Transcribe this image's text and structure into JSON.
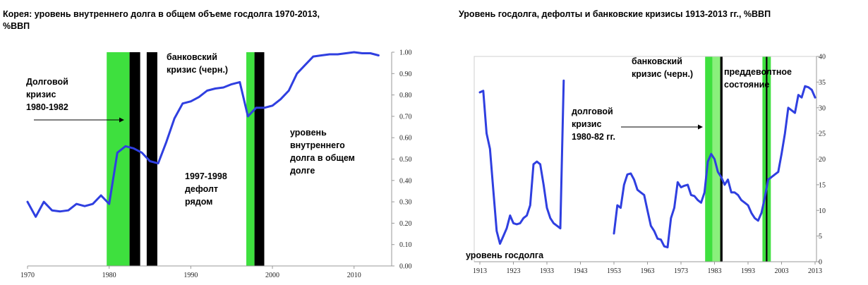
{
  "chart_data": [
    {
      "type": "line",
      "title": "Корея: уровень внутреннего долга в общем объеме госдолга 1970-2013,",
      "title_line2": "%ВВП",
      "y_axis_side": "right",
      "xlim": [
        1970,
        2014
      ],
      "ylim": [
        0,
        1.0
      ],
      "x_ticks": [
        "1970",
        "1980",
        "1990",
        "2000",
        "2010"
      ],
      "y_ticks": [
        "0.00",
        "0.10",
        "0.20",
        "0.30",
        "0.40",
        "0.50",
        "0.60",
        "0.70",
        "0.80",
        "0.90",
        "1.00"
      ],
      "grid": false,
      "series": [
        {
          "color": "#2f3fe0",
          "x": [
            1970,
            1971,
            1972,
            1973,
            1974,
            1975,
            1976,
            1977,
            1978,
            1979,
            1980,
            1981,
            1982,
            1983,
            1984,
            1985,
            1986,
            1987,
            1988,
            1989,
            1990,
            1991,
            1992,
            1993,
            1994,
            1995,
            1996,
            1997,
            1998,
            1999,
            2000,
            2001,
            2002,
            2003,
            2004,
            2005,
            2006,
            2007,
            2008,
            2009,
            2010,
            2011,
            2012,
            2013
          ],
          "y": [
            0.3,
            0.23,
            0.3,
            0.26,
            0.255,
            0.26,
            0.29,
            0.28,
            0.29,
            0.33,
            0.29,
            0.53,
            0.56,
            0.55,
            0.53,
            0.49,
            0.48,
            0.58,
            0.69,
            0.76,
            0.77,
            0.79,
            0.82,
            0.83,
            0.835,
            0.85,
            0.86,
            0.7,
            0.74,
            0.74,
            0.75,
            0.78,
            0.82,
            0.9,
            0.94,
            0.98,
            0.985,
            0.99,
            0.99,
            0.995,
            1.0,
            0.995,
            0.995,
            0.985
          ]
        }
      ],
      "bands": [
        {
          "from": 1979.7,
          "to": 1982.5,
          "color": "#3ee03e"
        },
        {
          "from": 1982.5,
          "to": 1983.8,
          "color": "#000000"
        },
        {
          "from": 1984.6,
          "to": 1985.9,
          "color": "#000000"
        },
        {
          "from": 1996.8,
          "to": 1997.8,
          "color": "#3ee03e"
        },
        {
          "from": 1997.8,
          "to": 1999.0,
          "color": "#000000"
        }
      ],
      "annotations": [
        {
          "lines": [
            "Долговой",
            "кризис",
            "1980-1982"
          ],
          "arrow": true
        },
        {
          "lines": [
            "банковский",
            "кризис (черн.)"
          ]
        },
        {
          "lines": [
            "1997-1998",
            "дефолт",
            "рядом"
          ]
        },
        {
          "lines": [
            "уровень",
            "внутреннего",
            "долга в общем",
            "долге"
          ]
        }
      ]
    },
    {
      "type": "line",
      "title": "Уровень госдолга, дефолты и банковские кризисы 1913-2013 гг., %ВВП",
      "y_axis_side": "right",
      "xlim": [
        1913,
        2013
      ],
      "ylim": [
        0,
        40
      ],
      "x_ticks": [
        "1913",
        "1923",
        "1933",
        "1943",
        "1953",
        "1963",
        "1973",
        "1983",
        "1993",
        "2003",
        "2013"
      ],
      "y_ticks": [
        "0",
        "5",
        "10",
        "15",
        "20",
        "25",
        "30",
        "35",
        "40"
      ],
      "grid": false,
      "series": [
        {
          "color": "#2f3fe0",
          "segments": [
            {
              "x": [
                1913,
                1914,
                1915,
                1916,
                1917,
                1918,
                1919,
                1920,
                1921,
                1922,
                1923,
                1924,
                1925,
                1926,
                1927,
                1928,
                1929,
                1930,
                1931,
                1932,
                1933,
                1934,
                1935,
                1936,
                1937,
                1938
              ],
              "y": [
                33,
                33.3,
                25,
                22,
                14,
                6,
                3.5,
                5,
                6.5,
                9,
                7.5,
                7.3,
                7.5,
                8.5,
                9,
                11,
                19,
                19.5,
                19,
                15,
                10.5,
                8.5,
                7.5,
                7,
                6.5,
                35.3
              ]
            },
            {
              "x": [
                1953,
                1954,
                1955,
                1956,
                1957,
                1958,
                1959,
                1960,
                1961,
                1962,
                1963,
                1964,
                1965,
                1966,
                1967,
                1968,
                1969,
                1970,
                1971,
                1972,
                1973,
                1974,
                1975,
                1976,
                1977,
                1978,
                1979,
                1980,
                1981,
                1982,
                1983,
                1984,
                1985,
                1986,
                1987,
                1988,
                1989,
                1990,
                1991,
                1992,
                1993,
                1994,
                1995,
                1996,
                1997,
                1998,
                1999,
                2000,
                2001,
                2002,
                2003,
                2004,
                2005,
                2006,
                2007,
                2008,
                2009,
                2010,
                2011,
                2012,
                2013
              ],
              "y": [
                5.5,
                11,
                10.5,
                15,
                17,
                17.2,
                16,
                14,
                13.5,
                13,
                10,
                7,
                6,
                4.5,
                4.3,
                3,
                2.8,
                8.5,
                10.5,
                15.5,
                14.5,
                14.8,
                15,
                13,
                12.8,
                12,
                11.5,
                13.5,
                19.5,
                21,
                20,
                17.5,
                16.5,
                15,
                16,
                13.5,
                13.5,
                13,
                12,
                11.5,
                11,
                9.5,
                8.5,
                8,
                9.5,
                12.5,
                16,
                16.5,
                17,
                17.5,
                21,
                25,
                30,
                29.5,
                29,
                32.5,
                32,
                34.2,
                34,
                33.5,
                32
              ]
            }
          ]
        }
      ],
      "bands": [
        {
          "from": 1980.2,
          "to": 1982.4,
          "color": "#3ee03e"
        },
        {
          "from": 1982.4,
          "to": 1984.7,
          "color": "#8af07c"
        },
        {
          "from": 1984.7,
          "to": 1985.4,
          "color": "#000000"
        },
        {
          "from": 1997.3,
          "to": 1998.3,
          "color": "#3ee03e"
        },
        {
          "from": 1998.3,
          "to": 1998.8,
          "color": "#000000"
        },
        {
          "from": 1998.8,
          "to": 1999.8,
          "color": "#3ee03e"
        }
      ],
      "annotations": [
        {
          "lines": [
            "банковский",
            "кризис (черн.)"
          ]
        },
        {
          "lines": [
            "преддеволтное",
            "состояние"
          ]
        },
        {
          "lines": [
            "долговой",
            "кризис",
            "1980-82 гг."
          ],
          "arrow": true
        },
        {
          "lines": [
            "уровень госдолга"
          ]
        }
      ]
    }
  ]
}
